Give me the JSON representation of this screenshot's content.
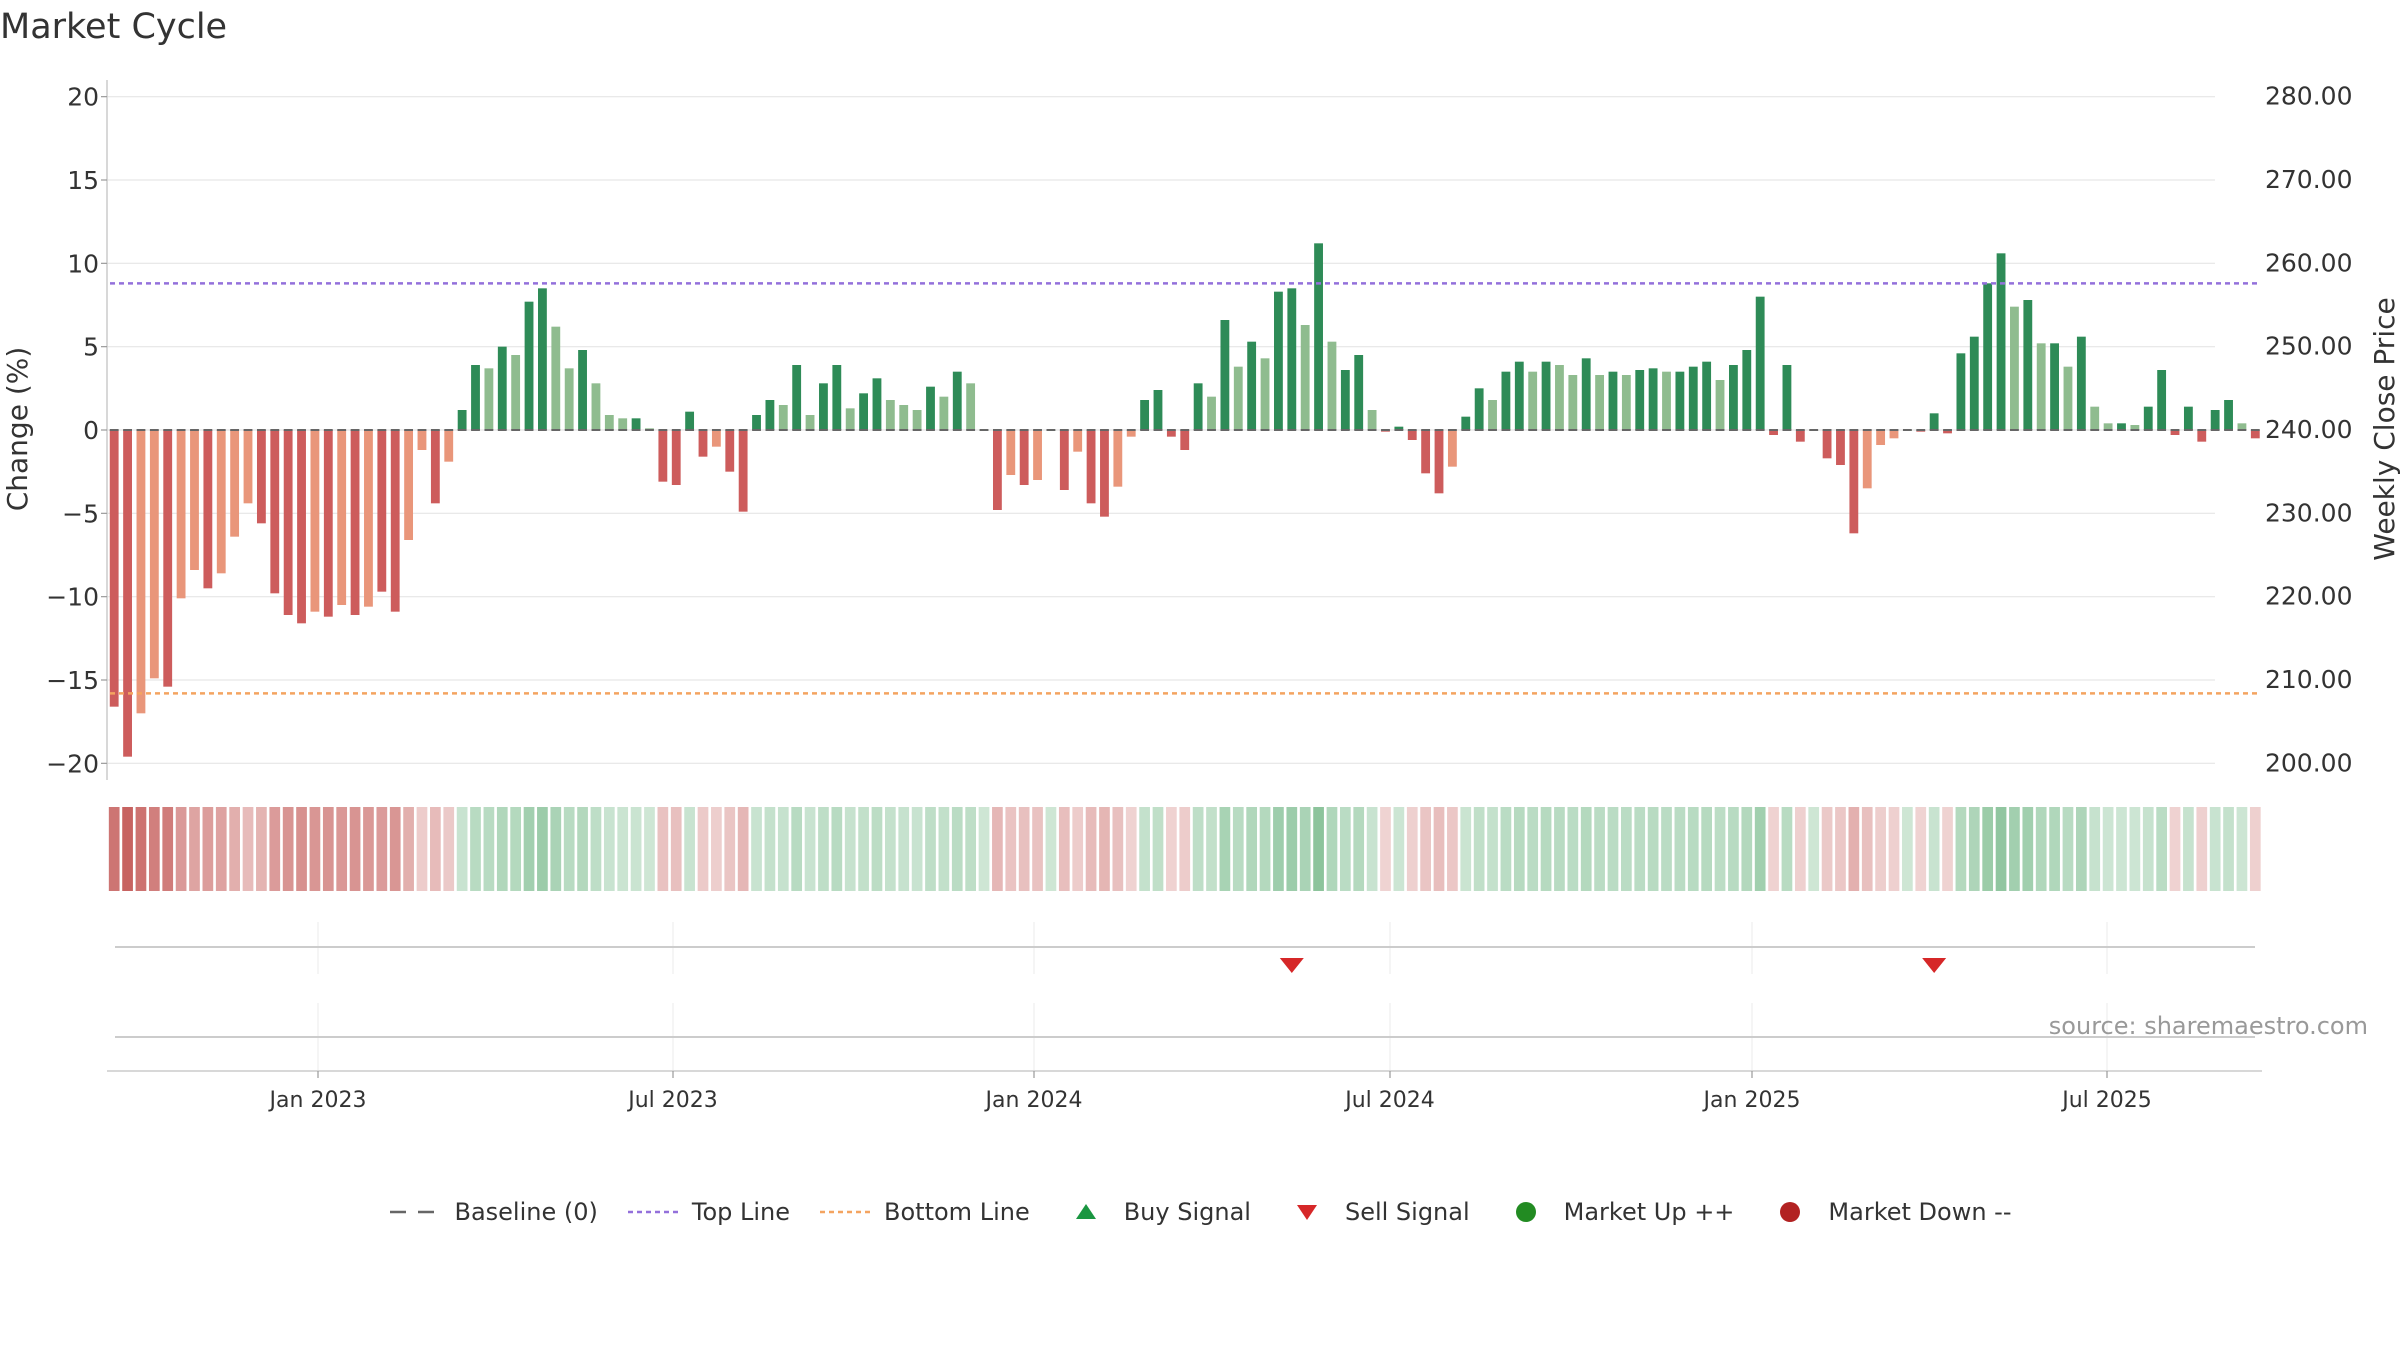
{
  "chart_data": {
    "type": "bar",
    "title": "Market Cycle",
    "ylabel": "Change (%)",
    "y2label": "Weekly Close Price",
    "ylim": [
      -21,
      21
    ],
    "y2lim": [
      198.0,
      282.0
    ],
    "yticks": [
      "20",
      "15",
      "10",
      "5",
      "0",
      "−5",
      "−10",
      "−15",
      "−20"
    ],
    "y2ticks": [
      "280.00",
      "270.00",
      "260.00",
      "250.00",
      "240.00",
      "230.00",
      "220.00",
      "210.00",
      "200.00"
    ],
    "x_ticks": [
      "Jan 2023",
      "Jul 2023",
      "Jan 2024",
      "Jul 2024",
      "Jan 2025",
      "Jul 2025"
    ],
    "top_line": 8.8,
    "bottom_line": -15.8,
    "source": "source: sharemaestro.com",
    "colors": {
      "strong_down": "#cd5c5c",
      "weak_down": "#e9967a",
      "strong_up": "#2e8b57",
      "weak_up": "#8fbc8f",
      "top_line": "#9370db",
      "bottom_line": "#f4a460",
      "buy": "#1a9641",
      "sell": "#d62728"
    },
    "bars": [
      {
        "value": -16.6,
        "kind": "strong_down"
      },
      {
        "value": -19.6,
        "kind": "strong_down"
      },
      {
        "value": -17.0,
        "kind": "weak_down"
      },
      {
        "value": -14.9,
        "kind": "weak_down"
      },
      {
        "value": -15.4,
        "kind": "strong_down"
      },
      {
        "value": -10.1,
        "kind": "weak_down"
      },
      {
        "value": -8.4,
        "kind": "weak_down"
      },
      {
        "value": -9.5,
        "kind": "strong_down"
      },
      {
        "value": -8.6,
        "kind": "weak_down"
      },
      {
        "value": -6.4,
        "kind": "weak_down"
      },
      {
        "value": -4.4,
        "kind": "weak_down"
      },
      {
        "value": -5.6,
        "kind": "strong_down"
      },
      {
        "value": -9.8,
        "kind": "strong_down"
      },
      {
        "value": -11.1,
        "kind": "strong_down"
      },
      {
        "value": -11.6,
        "kind": "strong_down"
      },
      {
        "value": -10.9,
        "kind": "weak_down"
      },
      {
        "value": -11.2,
        "kind": "strong_down"
      },
      {
        "value": -10.5,
        "kind": "weak_down"
      },
      {
        "value": -11.1,
        "kind": "strong_down"
      },
      {
        "value": -10.6,
        "kind": "weak_down"
      },
      {
        "value": -9.7,
        "kind": "strong_down"
      },
      {
        "value": -10.9,
        "kind": "strong_down"
      },
      {
        "value": -6.6,
        "kind": "weak_down"
      },
      {
        "value": -1.2,
        "kind": "weak_down"
      },
      {
        "value": -4.4,
        "kind": "strong_down"
      },
      {
        "value": -1.9,
        "kind": "weak_down"
      },
      {
        "value": 1.2,
        "kind": "strong_up"
      },
      {
        "value": 3.9,
        "kind": "strong_up"
      },
      {
        "value": 3.7,
        "kind": "weak_up"
      },
      {
        "value": 5.0,
        "kind": "strong_up"
      },
      {
        "value": 4.5,
        "kind": "weak_up"
      },
      {
        "value": 7.7,
        "kind": "strong_up"
      },
      {
        "value": 8.5,
        "kind": "strong_up"
      },
      {
        "value": 6.2,
        "kind": "weak_up"
      },
      {
        "value": 3.7,
        "kind": "weak_up"
      },
      {
        "value": 4.8,
        "kind": "strong_up"
      },
      {
        "value": 2.8,
        "kind": "weak_up"
      },
      {
        "value": 0.9,
        "kind": "weak_up"
      },
      {
        "value": 0.7,
        "kind": "weak_up"
      },
      {
        "value": 0.7,
        "kind": "strong_up"
      },
      {
        "value": 0.1,
        "kind": "weak_up"
      },
      {
        "value": -3.1,
        "kind": "strong_down"
      },
      {
        "value": -3.3,
        "kind": "strong_down"
      },
      {
        "value": 1.1,
        "kind": "strong_up"
      },
      {
        "value": -1.6,
        "kind": "strong_down"
      },
      {
        "value": -1.0,
        "kind": "weak_down"
      },
      {
        "value": -2.5,
        "kind": "strong_down"
      },
      {
        "value": -4.9,
        "kind": "strong_down"
      },
      {
        "value": 0.9,
        "kind": "strong_up"
      },
      {
        "value": 1.8,
        "kind": "strong_up"
      },
      {
        "value": 1.5,
        "kind": "weak_up"
      },
      {
        "value": 3.9,
        "kind": "strong_up"
      },
      {
        "value": 0.9,
        "kind": "weak_up"
      },
      {
        "value": 2.8,
        "kind": "strong_up"
      },
      {
        "value": 3.9,
        "kind": "strong_up"
      },
      {
        "value": 1.3,
        "kind": "weak_up"
      },
      {
        "value": 2.2,
        "kind": "strong_up"
      },
      {
        "value": 3.1,
        "kind": "strong_up"
      },
      {
        "value": 1.8,
        "kind": "weak_up"
      },
      {
        "value": 1.5,
        "kind": "weak_up"
      },
      {
        "value": 1.2,
        "kind": "weak_up"
      },
      {
        "value": 2.6,
        "kind": "strong_up"
      },
      {
        "value": 2.0,
        "kind": "weak_up"
      },
      {
        "value": 3.5,
        "kind": "strong_up"
      },
      {
        "value": 2.8,
        "kind": "weak_up"
      },
      {
        "value": 0.0,
        "kind": "weak_up"
      },
      {
        "value": -4.8,
        "kind": "strong_down"
      },
      {
        "value": -2.7,
        "kind": "weak_down"
      },
      {
        "value": -3.3,
        "kind": "strong_down"
      },
      {
        "value": -3.0,
        "kind": "weak_down"
      },
      {
        "value": 0.0,
        "kind": "weak_up"
      },
      {
        "value": -3.6,
        "kind": "strong_down"
      },
      {
        "value": -1.3,
        "kind": "weak_down"
      },
      {
        "value": -4.4,
        "kind": "strong_down"
      },
      {
        "value": -5.2,
        "kind": "strong_down"
      },
      {
        "value": -3.4,
        "kind": "weak_down"
      },
      {
        "value": -0.4,
        "kind": "weak_down"
      },
      {
        "value": 1.8,
        "kind": "strong_up"
      },
      {
        "value": 2.4,
        "kind": "strong_up"
      },
      {
        "value": -0.4,
        "kind": "strong_down"
      },
      {
        "value": -1.2,
        "kind": "strong_down"
      },
      {
        "value": 2.8,
        "kind": "strong_up"
      },
      {
        "value": 2.0,
        "kind": "weak_up"
      },
      {
        "value": 6.6,
        "kind": "strong_up"
      },
      {
        "value": 3.8,
        "kind": "weak_up"
      },
      {
        "value": 5.3,
        "kind": "strong_up"
      },
      {
        "value": 4.3,
        "kind": "weak_up"
      },
      {
        "value": 8.3,
        "kind": "strong_up"
      },
      {
        "value": 8.5,
        "kind": "strong_up"
      },
      {
        "value": 6.3,
        "kind": "weak_up"
      },
      {
        "value": 11.2,
        "kind": "strong_up"
      },
      {
        "value": 5.3,
        "kind": "weak_up"
      },
      {
        "value": 3.6,
        "kind": "strong_up"
      },
      {
        "value": 4.5,
        "kind": "strong_up"
      },
      {
        "value": 1.2,
        "kind": "weak_up"
      },
      {
        "value": -0.1,
        "kind": "strong_down"
      },
      {
        "value": 0.2,
        "kind": "strong_up"
      },
      {
        "value": -0.6,
        "kind": "strong_down"
      },
      {
        "value": -2.6,
        "kind": "strong_down"
      },
      {
        "value": -3.8,
        "kind": "strong_down"
      },
      {
        "value": -2.2,
        "kind": "weak_down"
      },
      {
        "value": 0.8,
        "kind": "strong_up"
      },
      {
        "value": 2.5,
        "kind": "strong_up"
      },
      {
        "value": 1.8,
        "kind": "weak_up"
      },
      {
        "value": 3.5,
        "kind": "strong_up"
      },
      {
        "value": 4.1,
        "kind": "strong_up"
      },
      {
        "value": 3.5,
        "kind": "weak_up"
      },
      {
        "value": 4.1,
        "kind": "strong_up"
      },
      {
        "value": 3.9,
        "kind": "weak_up"
      },
      {
        "value": 3.3,
        "kind": "weak_up"
      },
      {
        "value": 4.3,
        "kind": "strong_up"
      },
      {
        "value": 3.3,
        "kind": "weak_up"
      },
      {
        "value": 3.5,
        "kind": "strong_up"
      },
      {
        "value": 3.3,
        "kind": "weak_up"
      },
      {
        "value": 3.6,
        "kind": "strong_up"
      },
      {
        "value": 3.7,
        "kind": "strong_up"
      },
      {
        "value": 3.5,
        "kind": "weak_up"
      },
      {
        "value": 3.5,
        "kind": "strong_up"
      },
      {
        "value": 3.8,
        "kind": "strong_up"
      },
      {
        "value": 4.1,
        "kind": "strong_up"
      },
      {
        "value": 3.0,
        "kind": "weak_up"
      },
      {
        "value": 3.9,
        "kind": "strong_up"
      },
      {
        "value": 4.8,
        "kind": "strong_up"
      },
      {
        "value": 8.0,
        "kind": "strong_up"
      },
      {
        "value": -0.3,
        "kind": "strong_down"
      },
      {
        "value": 3.9,
        "kind": "strong_up"
      },
      {
        "value": -0.7,
        "kind": "strong_down"
      },
      {
        "value": 0.0,
        "kind": "weak_up"
      },
      {
        "value": -1.7,
        "kind": "strong_down"
      },
      {
        "value": -2.1,
        "kind": "strong_down"
      },
      {
        "value": -6.2,
        "kind": "strong_down"
      },
      {
        "value": -3.5,
        "kind": "weak_down"
      },
      {
        "value": -0.9,
        "kind": "weak_down"
      },
      {
        "value": -0.5,
        "kind": "weak_down"
      },
      {
        "value": 0.0,
        "kind": "weak_up"
      },
      {
        "value": -0.1,
        "kind": "strong_down"
      },
      {
        "value": 1.0,
        "kind": "strong_up"
      },
      {
        "value": -0.2,
        "kind": "strong_down"
      },
      {
        "value": 4.6,
        "kind": "strong_up"
      },
      {
        "value": 5.6,
        "kind": "strong_up"
      },
      {
        "value": 8.8,
        "kind": "strong_up"
      },
      {
        "value": 10.6,
        "kind": "strong_up"
      },
      {
        "value": 7.4,
        "kind": "weak_up"
      },
      {
        "value": 7.8,
        "kind": "strong_up"
      },
      {
        "value": 5.2,
        "kind": "weak_up"
      },
      {
        "value": 5.2,
        "kind": "strong_up"
      },
      {
        "value": 3.8,
        "kind": "weak_up"
      },
      {
        "value": 5.6,
        "kind": "strong_up"
      },
      {
        "value": 1.4,
        "kind": "weak_up"
      },
      {
        "value": 0.4,
        "kind": "weak_up"
      },
      {
        "value": 0.4,
        "kind": "strong_up"
      },
      {
        "value": 0.3,
        "kind": "weak_up"
      },
      {
        "value": 1.4,
        "kind": "strong_up"
      },
      {
        "value": 3.6,
        "kind": "strong_up"
      },
      {
        "value": -0.3,
        "kind": "strong_down"
      },
      {
        "value": 1.4,
        "kind": "strong_up"
      },
      {
        "value": -0.7,
        "kind": "strong_down"
      },
      {
        "value": 1.2,
        "kind": "strong_up"
      },
      {
        "value": 1.8,
        "kind": "strong_up"
      },
      {
        "value": 0.4,
        "kind": "weak_up"
      },
      {
        "value": -0.5,
        "kind": "strong_down"
      }
    ],
    "sell_signal_bars": [
      88,
      136
    ],
    "legend": [
      {
        "label": "Baseline (0)",
        "kind": "baseline"
      },
      {
        "label": "Top Line",
        "kind": "top_line"
      },
      {
        "label": "Bottom Line",
        "kind": "bottom_line"
      },
      {
        "label": "Buy Signal",
        "kind": "buy"
      },
      {
        "label": "Sell Signal",
        "kind": "sell"
      },
      {
        "label": "Market Up ++",
        "kind": "up"
      },
      {
        "label": "Market Down --",
        "kind": "down"
      }
    ]
  }
}
